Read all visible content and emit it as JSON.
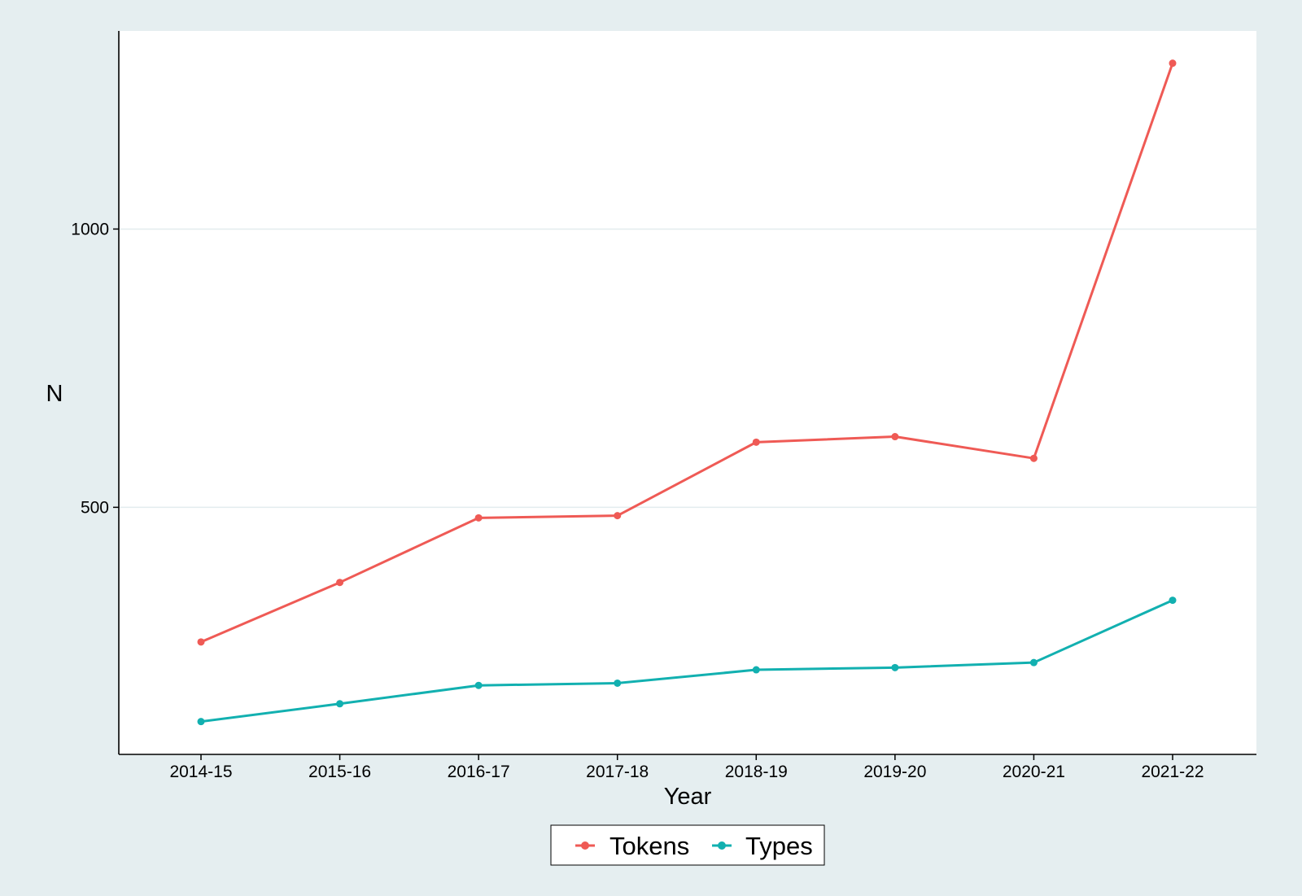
{
  "chart_data": {
    "type": "line",
    "title": "",
    "xlabel": "Year",
    "ylabel": "N",
    "categories": [
      "2014-15",
      "2015-16",
      "2016-17",
      "2017-18",
      "2018-19",
      "2019-20",
      "2020-21",
      "2021-22"
    ],
    "series": [
      {
        "name": "Tokens",
        "color": "#ef5a55",
        "values": [
          258,
          365,
          481,
          485,
          617,
          627,
          588,
          1298
        ]
      },
      {
        "name": "Types",
        "color": "#12b0b0",
        "values": [
          115,
          147,
          180,
          184,
          208,
          212,
          221,
          333
        ]
      }
    ],
    "yticks": [
      500,
      1000
    ],
    "ylim": [
      56,
      1356
    ],
    "grid": true,
    "legend_position": "bottom"
  }
}
